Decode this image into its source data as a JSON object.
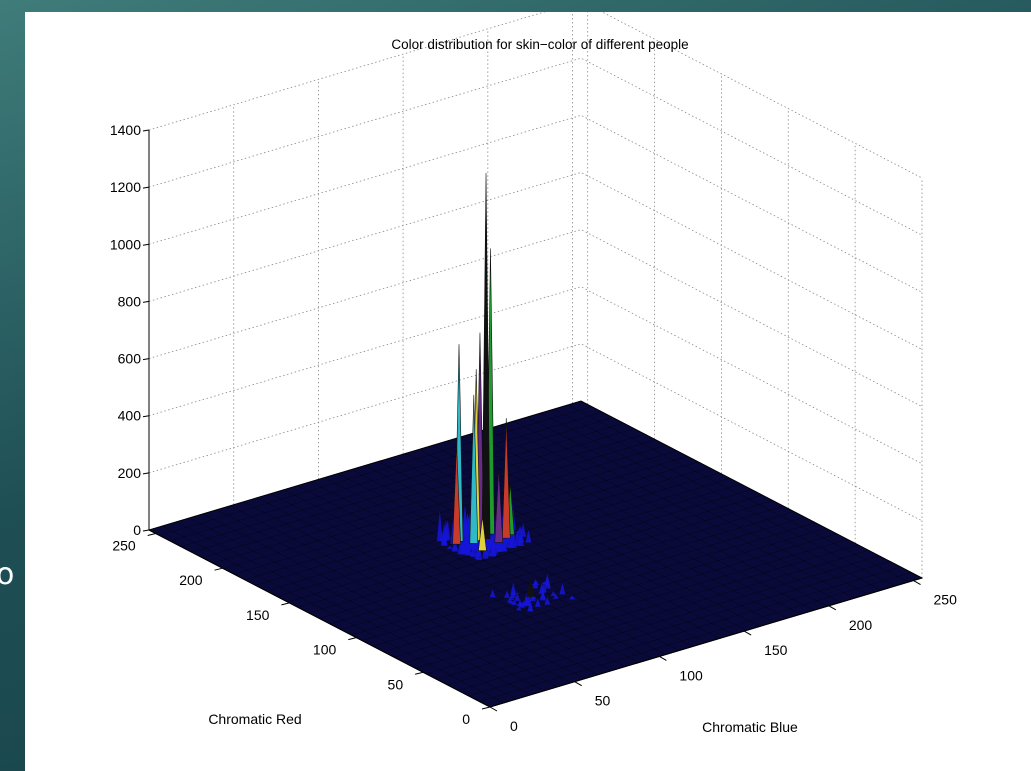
{
  "slide": {
    "edge_glyph": "o"
  },
  "colors": {
    "floor": "#0a0a3a",
    "floor_mesh": "#000000",
    "grid": "#8a8a8a",
    "spike_base": "#1515d8",
    "spike_colors": [
      "#2fb8c8",
      "#1f9b2e",
      "#c83a2a",
      "#6a2a8a",
      "#e0d23a",
      "#111111"
    ]
  },
  "chart_data": {
    "type": "surface",
    "title": "Color distribution for skin−color of different people",
    "xlabel": "Chromatic Blue",
    "ylabel": "Chromatic Red",
    "zlabel": "",
    "xlim": [
      0,
      255
    ],
    "ylim": [
      0,
      255
    ],
    "zlim": [
      0,
      1400
    ],
    "x_ticks": [
      "0",
      "50",
      "100",
      "150",
      "200",
      "250"
    ],
    "y_ticks": [
      "0",
      "50",
      "100",
      "150",
      "200",
      "250"
    ],
    "z_ticks": [
      "0",
      "200",
      "400",
      "600",
      "800",
      "1000",
      "1200",
      "1400"
    ],
    "grid": true,
    "peaks": [
      {
        "x": 120,
        "y": 155,
        "z": 1280
      },
      {
        "x": 125,
        "y": 158,
        "z": 1000
      },
      {
        "x": 118,
        "y": 157,
        "z": 720
      },
      {
        "x": 108,
        "y": 160,
        "z": 690
      },
      {
        "x": 115,
        "y": 156,
        "z": 600
      },
      {
        "x": 112,
        "y": 154,
        "z": 520
      },
      {
        "x": 128,
        "y": 150,
        "z": 420
      },
      {
        "x": 105,
        "y": 158,
        "z": 350
      },
      {
        "x": 122,
        "y": 148,
        "z": 260
      },
      {
        "x": 132,
        "y": 152,
        "z": 180
      },
      {
        "x": 110,
        "y": 145,
        "z": 120
      },
      {
        "x": 95,
        "y": 90,
        "z": 60
      }
    ]
  }
}
